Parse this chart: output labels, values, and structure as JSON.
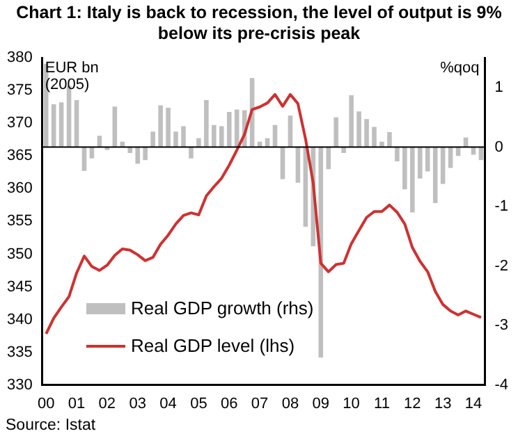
{
  "chart_data": {
    "type": "bar",
    "title": "Chart 1: Italy is back to recession, the level of output is 9% below its pre-crisis peak",
    "ylabel": "EUR bn (2005)",
    "y2label": "%qoq",
    "categories": [
      "00",
      null,
      null,
      null,
      "01",
      null,
      null,
      null,
      "02",
      null,
      null,
      null,
      "03",
      null,
      null,
      null,
      "04",
      null,
      null,
      null,
      "05",
      null,
      null,
      null,
      "06",
      null,
      null,
      null,
      "07",
      null,
      null,
      null,
      "08",
      null,
      null,
      null,
      "09",
      null,
      null,
      null,
      "10",
      null,
      null,
      null,
      "11",
      null,
      null,
      null,
      "12",
      null,
      null,
      null,
      "13",
      null,
      null,
      null,
      "14",
      null
    ],
    "series": [
      {
        "name": "Real GDP growth (rhs)",
        "axis": "y2",
        "color": "#bfbfbf",
        "values": [
          1.4,
          0.72,
          0.75,
          1.03,
          0.79,
          -0.4,
          -0.19,
          0.19,
          -0.05,
          0.68,
          0.09,
          -0.1,
          -0.28,
          -0.22,
          0.26,
          0.7,
          0.66,
          0.26,
          0.35,
          -0.19,
          0.15,
          0.79,
          0.37,
          0.35,
          0.59,
          0.63,
          0.62,
          1.16,
          0.09,
          0.15,
          0.37,
          -0.54,
          0.53,
          -0.6,
          -1.34,
          -1.67,
          -3.54,
          -0.37,
          0.5,
          -0.1,
          0.87,
          0.6,
          0.47,
          0.34,
          0.09,
          0.25,
          -0.24,
          -0.71,
          -1.1,
          -0.53,
          -0.41,
          -0.94,
          -0.62,
          -0.35,
          -0.15,
          0.16,
          -0.13,
          -0.22
        ]
      },
      {
        "name": "Real GDP level (lhs)",
        "type": "line",
        "color": "#d03030",
        "values": [
          337.8,
          340.2,
          341.9,
          343.5,
          347.1,
          349.7,
          348.1,
          347.5,
          348.3,
          349.8,
          350.8,
          350.6,
          349.9,
          349.0,
          349.5,
          351.5,
          352.9,
          354.6,
          355.9,
          356.3,
          356.0,
          358.9,
          360.3,
          361.6,
          363.6,
          365.9,
          368.3,
          372.1,
          372.5,
          373.1,
          374.4,
          372.6,
          374.4,
          373.0,
          367.6,
          360.9,
          348.6,
          347.3,
          348.4,
          348.6,
          351.6,
          353.6,
          355.6,
          356.5,
          356.5,
          357.5,
          356.4,
          354.6,
          351.0,
          348.9,
          347.3,
          344.3,
          342.3,
          341.3,
          340.7,
          341.3,
          340.8,
          340.3
        ]
      }
    ],
    "ylim": [
      330,
      380
    ],
    "yticks": [
      330,
      335,
      340,
      345,
      350,
      355,
      360,
      365,
      370,
      375,
      380
    ],
    "y2lim": [
      -4,
      1.5
    ],
    "y2ticks": [
      -4,
      -3,
      -2,
      -1,
      0,
      1
    ],
    "ref_lines": [
      {
        "axis": "y2",
        "value": 0,
        "color": "#000000"
      }
    ],
    "legend": "bottom left",
    "grid": false,
    "marker": "none",
    "annotations": [
      "Source: Istat"
    ]
  }
}
